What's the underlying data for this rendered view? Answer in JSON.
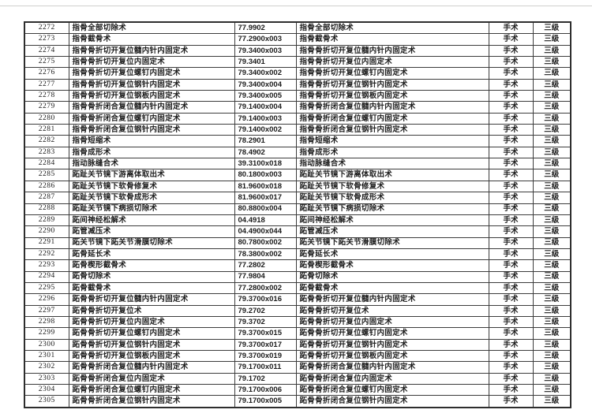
{
  "colors": {
    "page_background": "#ffffff",
    "table_border": "#2e2e2e",
    "cell_border": "#3c3c3c",
    "text": "#1c1c1c",
    "top_line": "#cfcfcd"
  },
  "table": {
    "rows": [
      {
        "no": "2272",
        "name": "指骨全部切除术",
        "code": "77.9902",
        "name2": "指骨全部切除术",
        "category": "手术",
        "level": "三级"
      },
      {
        "no": "2273",
        "name": "指骨截骨术",
        "code": "77.2900x003",
        "name2": "指骨截骨术",
        "category": "手术",
        "level": "三级"
      },
      {
        "no": "2274",
        "name": "指骨骨折切开复位髓内针内固定术",
        "code": "79.3400x003",
        "name2": "指骨骨折切开复位髓内针内固定术",
        "category": "手术",
        "level": "三级"
      },
      {
        "no": "2275",
        "name": "指骨骨折切开复位内固定术",
        "code": "79.3401",
        "name2": "指骨骨折切开复位内固定术",
        "category": "手术",
        "level": "三级"
      },
      {
        "no": "2276",
        "name": "指骨骨折切开复位螺钉内固定术",
        "code": "79.3400x002",
        "name2": "指骨骨折切开复位螺钉内固定术",
        "category": "手术",
        "level": "三级"
      },
      {
        "no": "2277",
        "name": "指骨骨折切开复位钢针内固定术",
        "code": "79.3400x004",
        "name2": "指骨骨折切开复位钢针内固定术",
        "category": "手术",
        "level": "三级"
      },
      {
        "no": "2278",
        "name": "指骨骨折切开复位钢板内固定术",
        "code": "79.3400x005",
        "name2": "指骨骨折切开复位钢板内固定术",
        "category": "手术",
        "level": "三级"
      },
      {
        "no": "2279",
        "name": "指骨骨折闭合复位髓内针内固定术",
        "code": "79.1400x004",
        "name2": "指骨骨折闭合复位髓内针内固定术",
        "category": "手术",
        "level": "三级"
      },
      {
        "no": "2280",
        "name": "指骨骨折闭合复位螺钉内固定术",
        "code": "79.1400x003",
        "name2": "指骨骨折闭合复位螺钉内固定术",
        "category": "手术",
        "level": "三级"
      },
      {
        "no": "2281",
        "name": "指骨骨折闭合复位钢针内固定术",
        "code": "79.1400x002",
        "name2": "指骨骨折闭合复位钢针内固定术",
        "category": "手术",
        "level": "三级"
      },
      {
        "no": "2282",
        "name": "指骨短缩术",
        "code": "78.2901",
        "name2": "指骨短缩术",
        "category": "手术",
        "level": "三级"
      },
      {
        "no": "2283",
        "name": "指骨成形术",
        "code": "78.4902",
        "name2": "指骨成形术",
        "category": "手术",
        "level": "三级"
      },
      {
        "no": "2284",
        "name": "指动脉缝合术",
        "code": "39.3100x018",
        "name2": "指动脉缝合术",
        "category": "手术",
        "level": "三级"
      },
      {
        "no": "2285",
        "name": "跖趾关节镜下游离体取出术",
        "code": "80.1800x003",
        "name2": "跖趾关节镜下游离体取出术",
        "category": "手术",
        "level": "三级"
      },
      {
        "no": "2286",
        "name": "跖趾关节镜下软骨修复术",
        "code": "81.9600x018",
        "name2": "跖趾关节镜下软骨修复术",
        "category": "手术",
        "level": "三级"
      },
      {
        "no": "2287",
        "name": "跖趾关节镜下软骨成形术",
        "code": "81.9600x017",
        "name2": "跖趾关节镜下软骨成形术",
        "category": "手术",
        "level": "三级"
      },
      {
        "no": "2288",
        "name": "跖趾关节镜下病损切除术",
        "code": "80.8800x004",
        "name2": "跖趾关节镜下病损切除术",
        "category": "手术",
        "level": "三级"
      },
      {
        "no": "2289",
        "name": "跖间神经松解术",
        "code": "04.4918",
        "name2": "跖间神经松解术",
        "category": "手术",
        "level": "三级"
      },
      {
        "no": "2290",
        "name": "跖管减压术",
        "code": "04.4900x044",
        "name2": "跖管减压术",
        "category": "手术",
        "level": "三级"
      },
      {
        "no": "2291",
        "name": "跖关节镜下跖关节滑膜切除术",
        "code": "80.7800x002",
        "name2": "跖关节镜下跖关节滑膜切除术",
        "category": "手术",
        "level": "三级"
      },
      {
        "no": "2292",
        "name": "跖骨延长术",
        "code": "78.3800x002",
        "name2": "跖骨延长术",
        "category": "手术",
        "level": "三级"
      },
      {
        "no": "2293",
        "name": "跖骨楔形截骨术",
        "code": "77.2802",
        "name2": "跖骨楔形截骨术",
        "category": "手术",
        "level": "三级"
      },
      {
        "no": "2294",
        "name": "跖骨切除术",
        "code": "77.9804",
        "name2": "跖骨切除术",
        "category": "手术",
        "level": "三级"
      },
      {
        "no": "2295",
        "name": "跖骨截骨术",
        "code": "77.2800x002",
        "name2": "跖骨截骨术",
        "category": "手术",
        "level": "三级"
      },
      {
        "no": "2296",
        "name": "跖骨骨折切开复位髓内针内固定术",
        "code": "79.3700x016",
        "name2": "跖骨骨折切开复位髓内针内固定术",
        "category": "手术",
        "level": "三级"
      },
      {
        "no": "2297",
        "name": "跖骨骨折切开复位术",
        "code": "79.2702",
        "name2": "跖骨骨折切开复位术",
        "category": "手术",
        "level": "三级"
      },
      {
        "no": "2298",
        "name": "跖骨骨折切开复位内固定术",
        "code": "79.3702",
        "name2": "跖骨骨折切开复位内固定术",
        "category": "手术",
        "level": "三级"
      },
      {
        "no": "2299",
        "name": "跖骨骨折切开复位螺钉内固定术",
        "code": "79.3700x015",
        "name2": "跖骨骨折切开复位螺钉内固定术",
        "category": "手术",
        "level": "三级"
      },
      {
        "no": "2300",
        "name": "跖骨骨折切开复位钢针内固定术",
        "code": "79.3700x017",
        "name2": "跖骨骨折切开复位钢针内固定术",
        "category": "手术",
        "level": "三级"
      },
      {
        "no": "2301",
        "name": "跖骨骨折切开复位钢板内固定术",
        "code": "79.3700x019",
        "name2": "跖骨骨折切开复位钢板内固定术",
        "category": "手术",
        "level": "三级"
      },
      {
        "no": "2302",
        "name": "跖骨骨折闭合复位髓内针内固定术",
        "code": "79.1700x011",
        "name2": "跖骨骨折闭合复位髓内针内固定术",
        "category": "手术",
        "level": "三级"
      },
      {
        "no": "2303",
        "name": "跖骨骨折闭合复位内固定术",
        "code": "79.1702",
        "name2": "跖骨骨折闭合复位内固定术",
        "category": "手术",
        "level": "三级"
      },
      {
        "no": "2304",
        "name": "跖骨骨折闭合复位螺钉内固定术",
        "code": "79.1700x006",
        "name2": "跖骨骨折闭合复位螺钉内固定术",
        "category": "手术",
        "level": "三级"
      },
      {
        "no": "2305",
        "name": "跖骨骨折闭合复位钢针内固定术",
        "code": "79.1700x005",
        "name2": "跖骨骨折闭合复位钢针内固定术",
        "category": "手术",
        "level": "三级"
      }
    ]
  }
}
